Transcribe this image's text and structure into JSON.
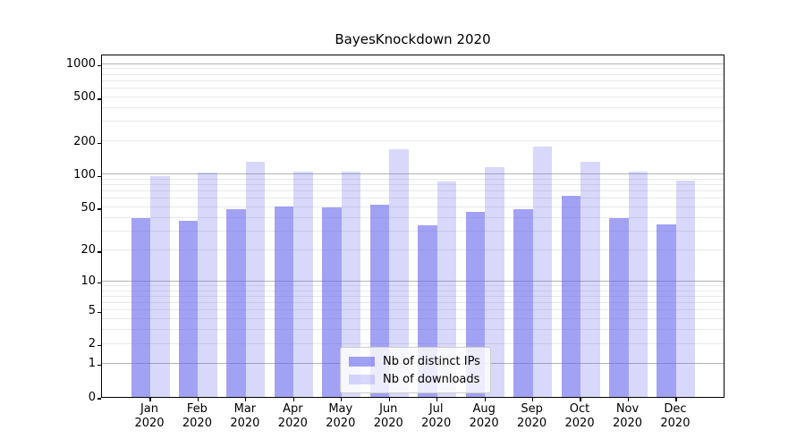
{
  "chart_data": {
    "type": "bar",
    "title": "BayesKnockdown 2020",
    "y_scale": "log1p",
    "grid": true,
    "legend_position": "lower center",
    "y_ticks": [
      0,
      1,
      2,
      5,
      10,
      20,
      50,
      100,
      200,
      500,
      1000
    ],
    "ylim": [
      0,
      1200
    ],
    "categories": [
      {
        "line1": "Jan",
        "line2": "2020"
      },
      {
        "line1": "Feb",
        "line2": "2020"
      },
      {
        "line1": "Mar",
        "line2": "2020"
      },
      {
        "line1": "Apr",
        "line2": "2020"
      },
      {
        "line1": "May",
        "line2": "2020"
      },
      {
        "line1": "Jun",
        "line2": "2020"
      },
      {
        "line1": "Jul",
        "line2": "2020"
      },
      {
        "line1": "Aug",
        "line2": "2020"
      },
      {
        "line1": "Sep",
        "line2": "2020"
      },
      {
        "line1": "Oct",
        "line2": "2020"
      },
      {
        "line1": "Nov",
        "line2": "2020"
      },
      {
        "line1": "Dec",
        "line2": "2020"
      }
    ],
    "series": [
      {
        "name": "Nb of distinct IPs",
        "color": "#6464ee99",
        "values": [
          40,
          38,
          48,
          51,
          50,
          53,
          34,
          46,
          48,
          64,
          40,
          35
        ]
      },
      {
        "name": "Nb of downloads",
        "color": "#6464ee40",
        "values": [
          97,
          104,
          131,
          107,
          107,
          170,
          87,
          116,
          178,
          131,
          106,
          88
        ]
      }
    ],
    "colors": {
      "grid_major": "#b4b4b4",
      "grid_minor": "#e9e9e9",
      "axis": "#000000",
      "text": "#000000"
    }
  }
}
